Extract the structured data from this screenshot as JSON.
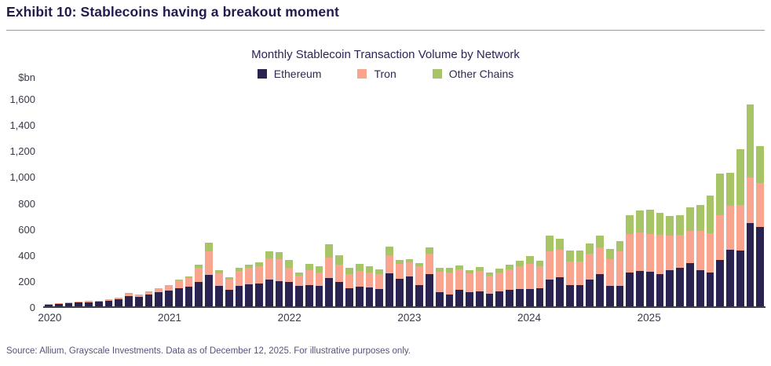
{
  "page": {
    "exhibit_title": "Exhibit 10: Stablecoins having a breakout moment",
    "source_note": "Source: Allium, Grayscale Investments. Data as of December 12, 2025. For illustrative purposes only."
  },
  "colors": {
    "ethereum": "#2a2352",
    "tron": "#f9a48f",
    "other_chains": "#a7c566",
    "title_text": "#211b4e",
    "axis_text": "#3a3947",
    "source_text": "#57527b"
  },
  "chart_data": {
    "type": "bar",
    "stacked": true,
    "title": "Monthly Stablecoin Transaction Volume by Network",
    "ylabel_unit": "$bn",
    "ylim": [
      0,
      1600
    ],
    "y_ticks": [
      "0",
      "200",
      "400",
      "600",
      "800",
      "1,000",
      "1,200",
      "1,400",
      "1,600"
    ],
    "x_year_labels": [
      "2020",
      "2021",
      "2022",
      "2023",
      "2024",
      "2025"
    ],
    "months_per_year": 12,
    "grid": false,
    "legend_position": "top-center",
    "legend": [
      "Ethereum",
      "Tron",
      "Other Chains"
    ],
    "series": [
      {
        "name": "Ethereum",
        "color": "#2a2352",
        "values": [
          14,
          20,
          27,
          30,
          32,
          36,
          42,
          55,
          80,
          74,
          88,
          106,
          118,
          140,
          150,
          190,
          240,
          155,
          125,
          160,
          170,
          175,
          205,
          195,
          190,
          160,
          165,
          155,
          215,
          185,
          140,
          150,
          145,
          130,
          255,
          210,
          230,
          165,
          245,
          110,
          90,
          125,
          110,
          115,
          95,
          115,
          125,
          135,
          135,
          140,
          205,
          225,
          165,
          165,
          205,
          245,
          155,
          160,
          260,
          270,
          265,
          250,
          280,
          295,
          335,
          275,
          260,
          355,
          435,
          430,
          640,
          610
        ]
      },
      {
        "name": "Tron",
        "color": "#f9a48f",
        "values": [
          2,
          4,
          5,
          6,
          8,
          9,
          10,
          13,
          18,
          16,
          22,
          30,
          46,
          58,
          68,
          105,
          185,
          100,
          82,
          110,
          125,
          130,
          165,
          170,
          105,
          75,
          110,
          105,
          160,
          135,
          110,
          120,
          115,
          115,
          135,
          115,
          110,
          140,
          160,
          155,
          170,
          160,
          145,
          155,
          140,
          145,
          160,
          175,
          190,
          165,
          220,
          210,
          180,
          180,
          200,
          210,
          210,
          260,
          295,
          295,
          290,
          300,
          265,
          255,
          245,
          305,
          300,
          345,
          335,
          350,
          350,
          340
        ]
      },
      {
        "name": "Other Chains",
        "color": "#a7c566",
        "values": [
          0,
          0,
          0,
          0,
          0,
          0,
          0,
          0,
          2,
          2,
          2,
          2,
          2,
          6,
          10,
          25,
          65,
          25,
          15,
          25,
          28,
          35,
          50,
          50,
          60,
          25,
          50,
          50,
          100,
          70,
          45,
          55,
          50,
          40,
          70,
          30,
          25,
          25,
          50,
          30,
          35,
          30,
          25,
          30,
          25,
          30,
          35,
          40,
          60,
          45,
          120,
          85,
          85,
          85,
          80,
          90,
          75,
          80,
          145,
          170,
          185,
          170,
          150,
          150,
          180,
          200,
          290,
          320,
          255,
          430,
          560,
          280
        ]
      }
    ]
  }
}
